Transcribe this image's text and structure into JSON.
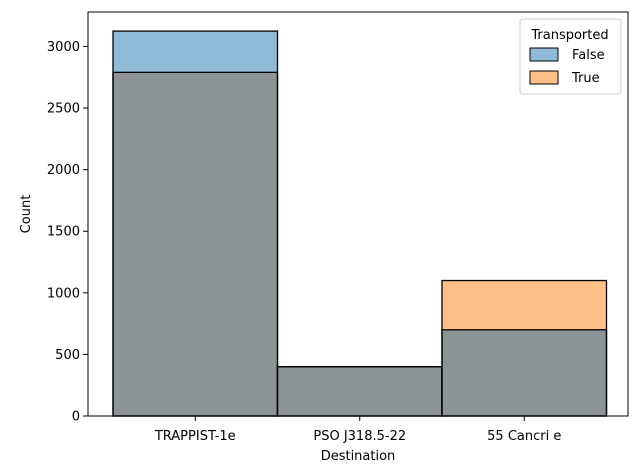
{
  "chart_data": {
    "type": "bar",
    "xlabel": "Destination",
    "ylabel": "Count",
    "categories": [
      "TRAPPIST-1e",
      "PSO J318.5-22",
      "55 Cancri e"
    ],
    "series": [
      {
        "name": "False",
        "values": [
          3125,
          400,
          700
        ]
      },
      {
        "name": "True",
        "values": [
          2790,
          400,
          1100
        ]
      }
    ],
    "yticks": [
      0,
      500,
      1000,
      1500,
      2000,
      2500,
      3000
    ],
    "ylim": [
      0,
      3280
    ],
    "stacked": false,
    "overlap": true,
    "legend": {
      "title": "Transported",
      "position": "top-right"
    },
    "grid": false,
    "colors": {
      "False": "#1f77b4",
      "True": "#ff7f0e",
      "overlap": "#8c9498",
      "edge": "#000000"
    }
  }
}
